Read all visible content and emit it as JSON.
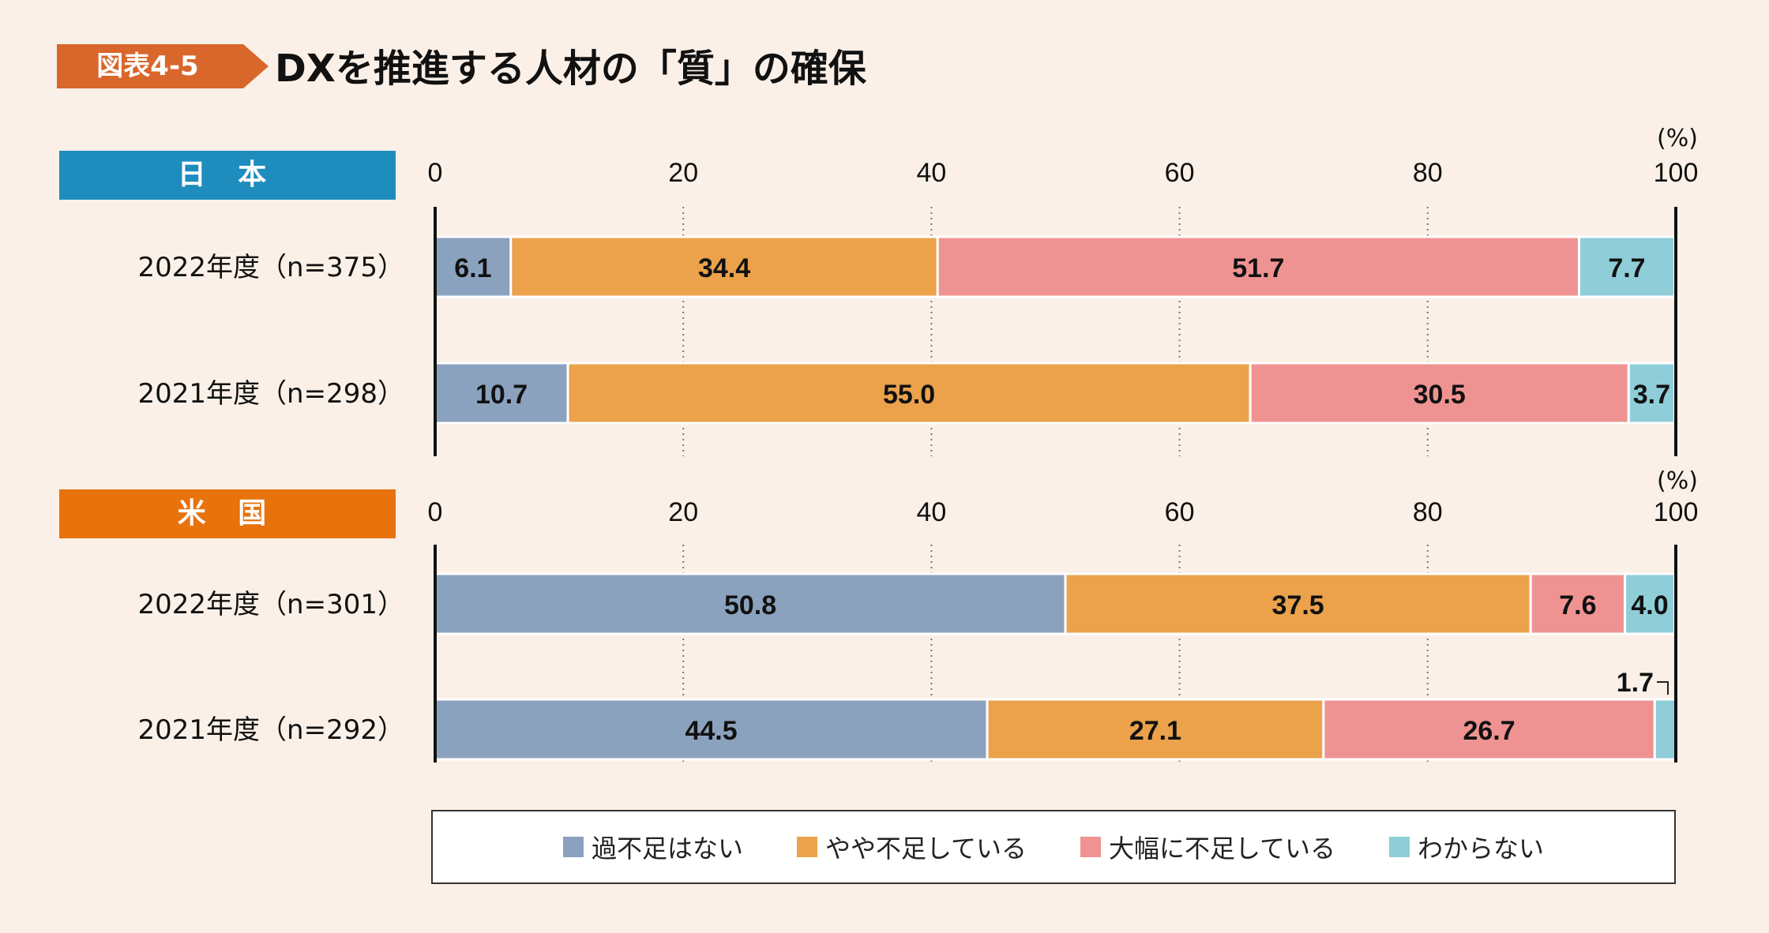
{
  "figure_label": "図表4-5",
  "title": "DXを推進する人材の「質」の確保",
  "colors": {
    "background": "#fbf0e7",
    "label_badge": "#d9662b",
    "japan_tag": "#1e8dbd",
    "us_tag": "#e8720c",
    "series": [
      "#8ba2bf",
      "#eba24b",
      "#ef9392",
      "#8fcdd8"
    ]
  },
  "legend": [
    "過不足はない",
    "やや不足している",
    "大幅に不足している",
    "わからない"
  ],
  "chart_data": [
    {
      "type": "bar",
      "orientation": "horizontal-stacked",
      "section": "日 本",
      "unit": "(%)",
      "xlim": [
        0,
        100
      ],
      "ticks": [
        0,
        20,
        40,
        60,
        80,
        100
      ],
      "categories": [
        "2022年度（n=375）",
        "2021年度（n=298）"
      ],
      "series": [
        {
          "name": "過不足はない",
          "values": [
            6.1,
            10.7
          ]
        },
        {
          "name": "やや不足している",
          "values": [
            34.4,
            55.0
          ]
        },
        {
          "name": "大幅に不足している",
          "values": [
            51.7,
            30.5
          ]
        },
        {
          "name": "わからない",
          "values": [
            7.7,
            3.7
          ]
        }
      ]
    },
    {
      "type": "bar",
      "orientation": "horizontal-stacked",
      "section": "米 国",
      "unit": "(%)",
      "xlim": [
        0,
        100
      ],
      "ticks": [
        0,
        20,
        40,
        60,
        80,
        100
      ],
      "categories": [
        "2022年度（n=301）",
        "2021年度（n=292）"
      ],
      "series": [
        {
          "name": "過不足はない",
          "values": [
            50.8,
            44.5
          ]
        },
        {
          "name": "やや不足している",
          "values": [
            37.5,
            27.1
          ]
        },
        {
          "name": "大幅に不足している",
          "values": [
            7.6,
            26.7
          ]
        },
        {
          "name": "わからない",
          "values": [
            4.0,
            1.7
          ]
        }
      ]
    }
  ]
}
